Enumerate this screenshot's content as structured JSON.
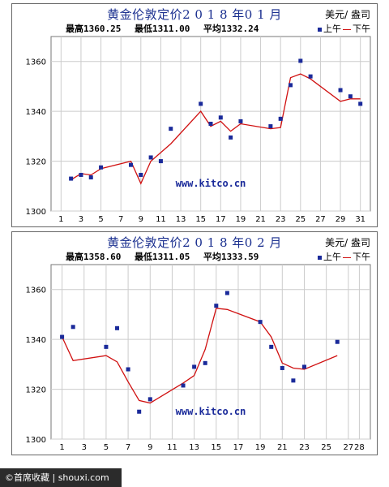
{
  "footer": {
    "text": "©首席收藏 | shouxi.com"
  },
  "chart_data": [
    {
      "id": "jan",
      "type": "line",
      "title": "黄金伦敦定价2 0 1 8 年0 1 月",
      "unit": "美元/ 盎司",
      "stats": {
        "high": "最高1360.25",
        "low": "最低1311.00",
        "avg": "平均1332.24"
      },
      "legend": {
        "am": "上午",
        "pm": "下午"
      },
      "watermark": "www.kitco.cn",
      "xlim": [
        0,
        32
      ],
      "ylim": [
        1300,
        1370
      ],
      "xticks": [
        1,
        3,
        5,
        7,
        9,
        11,
        13,
        15,
        17,
        19,
        21,
        23,
        25,
        27,
        29,
        31
      ],
      "yticks": [
        1300,
        1320,
        1340,
        1360
      ],
      "grid": true,
      "colors": {
        "am": "#1a2a9a",
        "pm": "#d01010"
      },
      "am": [
        [
          2,
          1313
        ],
        [
          3,
          1314.5
        ],
        [
          4,
          1313.5
        ],
        [
          5,
          1317.5
        ],
        [
          8,
          1318.5
        ],
        [
          9,
          1314.5
        ],
        [
          10,
          1321.5
        ],
        [
          11,
          1320
        ],
        [
          12,
          1333
        ],
        [
          15,
          1343
        ],
        [
          16,
          1335
        ],
        [
          17,
          1337.5
        ],
        [
          18,
          1329.5
        ],
        [
          19,
          1336
        ],
        [
          22,
          1334
        ],
        [
          23,
          1337
        ],
        [
          24,
          1350.5
        ],
        [
          25,
          1360.25
        ],
        [
          26,
          1354
        ],
        [
          29,
          1348.5
        ],
        [
          30,
          1346
        ],
        [
          31,
          1343
        ]
      ],
      "pm": [
        [
          2,
          1312.5
        ],
        [
          3,
          1315
        ],
        [
          4,
          1314.5
        ],
        [
          5,
          1317
        ],
        [
          8,
          1320
        ],
        [
          9,
          1311
        ],
        [
          10,
          1320
        ],
        [
          12,
          1327
        ],
        [
          15,
          1340
        ],
        [
          16,
          1334
        ],
        [
          17,
          1336
        ],
        [
          18,
          1332
        ],
        [
          19,
          1335
        ],
        [
          22,
          1333
        ],
        [
          23,
          1333.5
        ],
        [
          24,
          1353.5
        ],
        [
          25,
          1355
        ],
        [
          26,
          1353
        ],
        [
          29,
          1344
        ],
        [
          30,
          1345
        ],
        [
          31,
          1345
        ]
      ]
    },
    {
      "id": "feb",
      "type": "line",
      "title": "黄金伦敦定价2 0 1 8 年0 2 月",
      "unit": "美元/ 盎司",
      "stats": {
        "high": "最高1358.60",
        "low": "最低1311.05",
        "avg": "平均1333.59"
      },
      "legend": {
        "am": "上午",
        "pm": "下午"
      },
      "watermark": "www.kitco.cn",
      "xlim": [
        0,
        29
      ],
      "ylim": [
        1300,
        1370
      ],
      "xticks": [
        1,
        3,
        5,
        7,
        9,
        11,
        13,
        15,
        17,
        19,
        21,
        23,
        25,
        27,
        28
      ],
      "yticks": [
        1300,
        1320,
        1340,
        1360
      ],
      "grid": true,
      "colors": {
        "am": "#1a2a9a",
        "pm": "#d01010"
      },
      "am": [
        [
          1,
          1341
        ],
        [
          2,
          1345
        ],
        [
          5,
          1337
        ],
        [
          6,
          1344.5
        ],
        [
          7,
          1328
        ],
        [
          8,
          1311
        ],
        [
          9,
          1316
        ],
        [
          12,
          1321.5
        ],
        [
          13,
          1329
        ],
        [
          14,
          1330.5
        ],
        [
          15,
          1353.5
        ],
        [
          16,
          1358.6
        ],
        [
          19,
          1347
        ],
        [
          20,
          1337
        ],
        [
          21,
          1328.5
        ],
        [
          22,
          1323.5
        ],
        [
          23,
          1329
        ],
        [
          26,
          1339
        ]
      ],
      "pm": [
        [
          1,
          1341
        ],
        [
          2,
          1331.5
        ],
        [
          5,
          1333.5
        ],
        [
          6,
          1331
        ],
        [
          7,
          1323
        ],
        [
          8,
          1315.5
        ],
        [
          9,
          1314.5
        ],
        [
          12,
          1322.5
        ],
        [
          13,
          1325.5
        ],
        [
          14,
          1336
        ],
        [
          15,
          1352.5
        ],
        [
          16,
          1352
        ],
        [
          19,
          1347
        ],
        [
          20,
          1341
        ],
        [
          21,
          1330.5
        ],
        [
          22,
          1328.5
        ],
        [
          23,
          1328
        ],
        [
          26,
          1333.5
        ]
      ]
    }
  ]
}
